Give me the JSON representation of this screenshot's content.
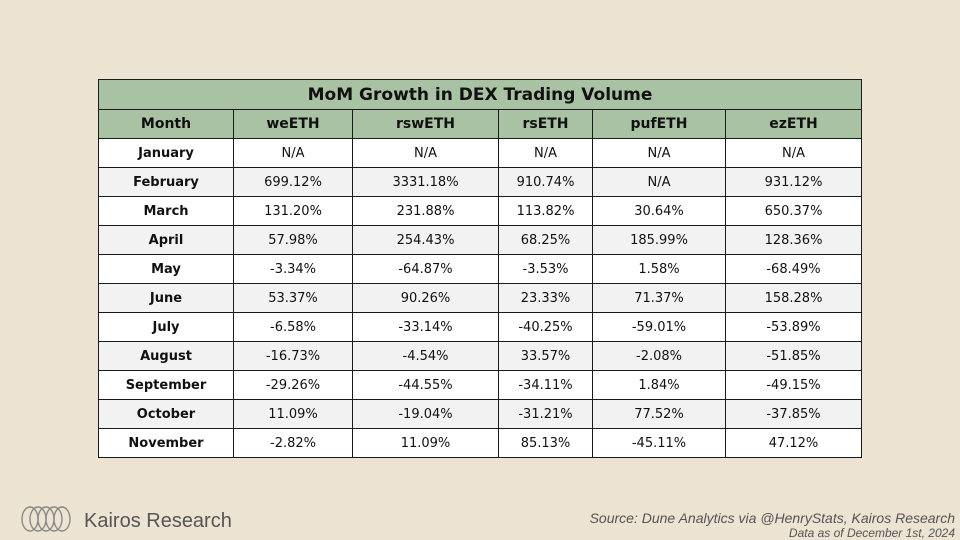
{
  "table": {
    "title": "MoM Growth in DEX Trading Volume",
    "headers": [
      "Month",
      "weETH",
      "rswETH",
      "rsETH",
      "pufETH",
      "ezETH"
    ],
    "rows": [
      [
        "January",
        "N/A",
        "N/A",
        "N/A",
        "N/A",
        "N/A"
      ],
      [
        "February",
        "699.12%",
        "3331.18%",
        "910.74%",
        "N/A",
        "931.12%"
      ],
      [
        "March",
        "131.20%",
        "231.88%",
        "113.82%",
        "30.64%",
        "650.37%"
      ],
      [
        "April",
        "57.98%",
        "254.43%",
        "68.25%",
        "185.99%",
        "128.36%"
      ],
      [
        "May",
        "-3.34%",
        "-64.87%",
        "-3.53%",
        "1.58%",
        "-68.49%"
      ],
      [
        "June",
        "53.37%",
        "90.26%",
        "23.33%",
        "71.37%",
        "158.28%"
      ],
      [
        "July",
        "-6.58%",
        "-33.14%",
        "-40.25%",
        "-59.01%",
        "-53.89%"
      ],
      [
        "August",
        "-16.73%",
        "-4.54%",
        "33.57%",
        "-2.08%",
        "-51.85%"
      ],
      [
        "September",
        "-29.26%",
        "-44.55%",
        "-34.11%",
        "1.84%",
        "-49.15%"
      ],
      [
        "October",
        "11.09%",
        "-19.04%",
        "-31.21%",
        "77.52%",
        "-37.85%"
      ],
      [
        "November",
        "-2.82%",
        "11.09%",
        "85.13%",
        "-45.11%",
        "47.12%"
      ]
    ]
  },
  "footer": {
    "brand": "Kairos Research",
    "brand_icon": "kairos-logo-icon",
    "source": "Source: Dune Analytics via @HenryStats, Kairos Research",
    "as_of": "Data as of December 1st, 2024"
  },
  "colors": {
    "background": "#ece3d2",
    "header_fill": "#a8c2a3",
    "row_alt_fill": "#f2f2f2"
  }
}
